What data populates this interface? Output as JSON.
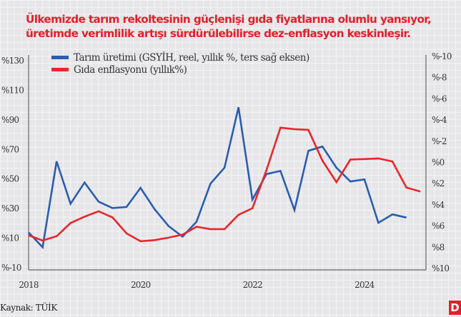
{
  "title_lines": [
    "Ülkemizde tarım rekoltesinin güçlenişi gıda fiyatlarına olumlu yansıyor,",
    "üretimde verimlilik artışı sürdürülebilirse dez-enflasyon keskinleşir."
  ],
  "source": "Kaynak: TÜİK",
  "logo": "D",
  "chart_data": {
    "type": "line",
    "x_ticks": [
      "2018",
      "2020",
      "2022",
      "2024"
    ],
    "xlim": [
      2018,
      2025.1
    ],
    "left_axis": {
      "ticks": [
        "%130",
        "%110",
        "%90",
        "%70",
        "%50",
        "%30",
        "%10",
        "%-10"
      ],
      "ylim": [
        -10,
        130
      ]
    },
    "right_axis": {
      "ticks": [
        "%-10",
        "%-8",
        "%-6",
        "%-4",
        "%-2",
        "%0",
        "%2",
        "%4",
        "%6",
        "%8",
        "%10"
      ],
      "ylim": [
        -10,
        10
      ],
      "inverted": true
    },
    "grid": true,
    "legend_position": "top-left",
    "series": [
      {
        "name": "Tarım üretimi (GSYİH, reel, yıllık %, ters sağ eksen)",
        "axis": "right",
        "color": "#2a5db0",
        "x": [
          2018,
          2018.25,
          2018.5,
          2018.75,
          2019,
          2019.25,
          2019.5,
          2019.75,
          2020,
          2020.25,
          2020.5,
          2020.75,
          2021,
          2021.25,
          2021.5,
          2021.75,
          2022,
          2022.25,
          2022.5,
          2022.75,
          2023,
          2023.25,
          2023.5,
          2023.75,
          2024,
          2024.25,
          2024.5,
          2024.75
        ],
        "values": [
          6.6,
          8.0,
          -0.1,
          3.9,
          1.9,
          3.7,
          4.3,
          4.2,
          2.4,
          4.4,
          6.0,
          7.0,
          5.6,
          2.0,
          0.5,
          -5.2,
          3.5,
          1.1,
          0.8,
          4.5,
          -1.1,
          -1.5,
          0.5,
          1.8,
          1.6,
          5.7,
          4.9,
          5.2
        ]
      },
      {
        "name": "Gıda enflasyonu (yıllık%)",
        "axis": "left",
        "color": "#e8262b",
        "x": [
          2018,
          2018.25,
          2018.5,
          2018.75,
          2019,
          2019.25,
          2019.5,
          2019.75,
          2020,
          2020.25,
          2020.5,
          2020.75,
          2021,
          2021.25,
          2021.5,
          2021.75,
          2022,
          2022.25,
          2022.5,
          2022.75,
          2023,
          2023.25,
          2023.5,
          2023.75,
          2024,
          2024.25,
          2024.5,
          2024.75,
          2025
        ],
        "values": [
          11.9,
          8.4,
          11.3,
          20.2,
          24.5,
          28.2,
          24.0,
          13.2,
          7.9,
          8.7,
          10.3,
          12.4,
          17.7,
          16.1,
          16.1,
          25.8,
          30.2,
          56.0,
          84.7,
          83.7,
          83.2,
          62.4,
          47.9,
          63.2,
          63.5,
          63.9,
          61.9,
          44.2,
          41.5
        ]
      }
    ]
  }
}
